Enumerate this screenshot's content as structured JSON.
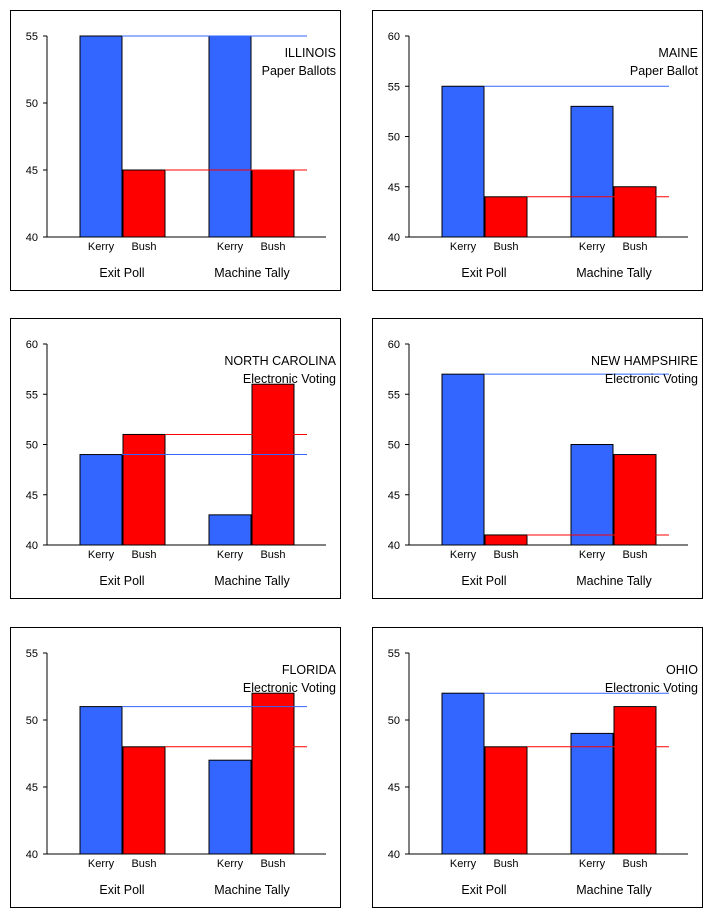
{
  "colors": {
    "kerry": "#3366FF",
    "bush": "#FF0000",
    "axis": "#000000"
  },
  "chart_data": [
    {
      "type": "bar",
      "title": "ILLINOIS",
      "subtitle": "Paper Ballots",
      "groups": [
        "Exit Poll",
        "Machine Tally"
      ],
      "categories": [
        "Kerry",
        "Bush"
      ],
      "series": [
        {
          "name": "Kerry",
          "values": [
            55,
            55
          ]
        },
        {
          "name": "Bush",
          "values": [
            45,
            45
          ]
        }
      ],
      "reference_lines": {
        "Kerry": 55,
        "Bush": 45
      },
      "ylim": [
        40,
        55
      ],
      "yticks": [
        40,
        45,
        50,
        55
      ]
    },
    {
      "type": "bar",
      "title": "MAINE",
      "subtitle": "Paper Ballot",
      "groups": [
        "Exit Poll",
        "Machine Tally"
      ],
      "categories": [
        "Kerry",
        "Bush"
      ],
      "series": [
        {
          "name": "Kerry",
          "values": [
            55,
            53
          ]
        },
        {
          "name": "Bush",
          "values": [
            44,
            45
          ]
        }
      ],
      "reference_lines": {
        "Kerry": 55,
        "Bush": 44
      },
      "ylim": [
        40,
        60
      ],
      "yticks": [
        40,
        45,
        50,
        55,
        60
      ]
    },
    {
      "type": "bar",
      "title": "NORTH CAROLINA",
      "subtitle": "Electronic Voting",
      "groups": [
        "Exit Poll",
        "Machine Tally"
      ],
      "categories": [
        "Kerry",
        "Bush"
      ],
      "series": [
        {
          "name": "Kerry",
          "values": [
            49,
            43
          ]
        },
        {
          "name": "Bush",
          "values": [
            51,
            56
          ]
        }
      ],
      "reference_lines": {
        "Kerry": 49,
        "Bush": 51
      },
      "ylim": [
        40,
        60
      ],
      "yticks": [
        40,
        45,
        50,
        55,
        60
      ]
    },
    {
      "type": "bar",
      "title": "NEW HAMPSHIRE",
      "subtitle": "Electronic Voting",
      "groups": [
        "Exit Poll",
        "Machine Tally"
      ],
      "categories": [
        "Kerry",
        "Bush"
      ],
      "series": [
        {
          "name": "Kerry",
          "values": [
            57,
            50
          ]
        },
        {
          "name": "Bush",
          "values": [
            41,
            49
          ]
        }
      ],
      "reference_lines": {
        "Kerry": 57,
        "Bush": 41
      },
      "ylim": [
        40,
        60
      ],
      "yticks": [
        40,
        45,
        50,
        55,
        60
      ]
    },
    {
      "type": "bar",
      "title": "FLORIDA",
      "subtitle": "Electronic Voting",
      "groups": [
        "Exit Poll",
        "Machine Tally"
      ],
      "categories": [
        "Kerry",
        "Bush"
      ],
      "series": [
        {
          "name": "Kerry",
          "values": [
            51,
            47
          ]
        },
        {
          "name": "Bush",
          "values": [
            48,
            52
          ]
        }
      ],
      "reference_lines": {
        "Kerry": 51,
        "Bush": 48
      },
      "ylim": [
        40,
        55
      ],
      "yticks": [
        40,
        45,
        50,
        55
      ]
    },
    {
      "type": "bar",
      "title": "OHIO",
      "subtitle": "Electronic Voting",
      "groups": [
        "Exit Poll",
        "Machine Tally"
      ],
      "categories": [
        "Kerry",
        "Bush"
      ],
      "series": [
        {
          "name": "Kerry",
          "values": [
            52,
            49
          ]
        },
        {
          "name": "Bush",
          "values": [
            48,
            51
          ]
        }
      ],
      "reference_lines": {
        "Kerry": 52,
        "Bush": 48
      },
      "ylim": [
        40,
        55
      ],
      "yticks": [
        40,
        45,
        50,
        55
      ]
    }
  ]
}
